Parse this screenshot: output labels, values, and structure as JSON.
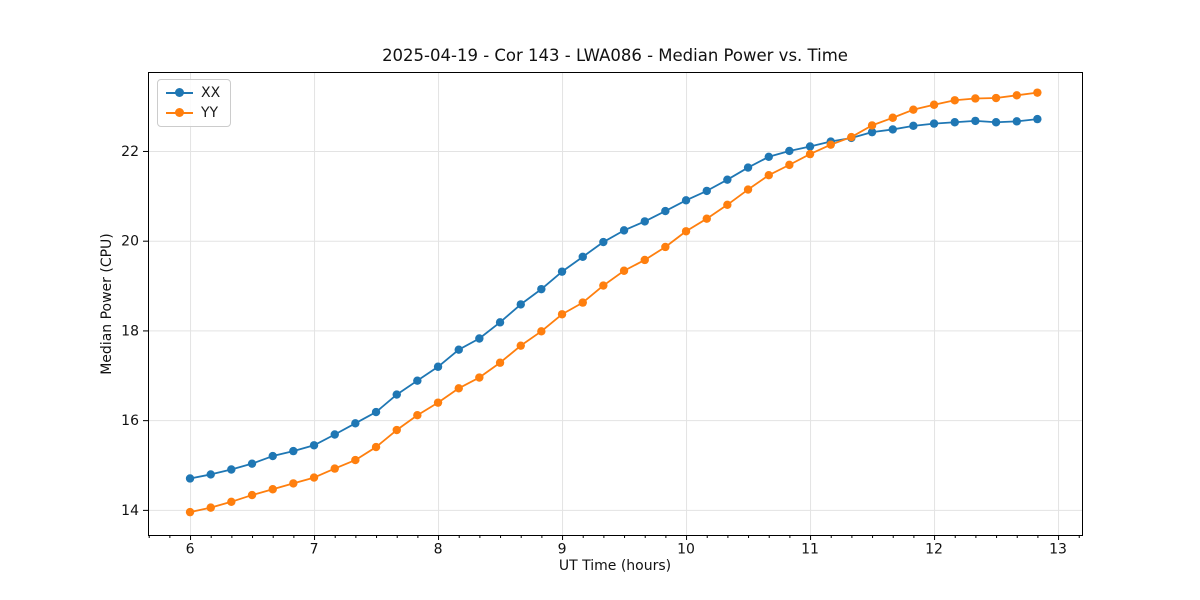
{
  "chart_data": {
    "type": "line",
    "title": "2025-04-19 - Cor 143 - LWA086 - Median Power vs. Time",
    "xlabel": "UT Time (hours)",
    "ylabel": "Median Power (CPU)",
    "grid": true,
    "legend_position": "upper-left",
    "xlim": [
      5.661,
      13.193
    ],
    "ylim": [
      13.44,
      23.76
    ],
    "x_major_ticks": [
      6,
      7,
      8,
      9,
      10,
      11,
      12,
      13
    ],
    "x_minor_tick_step": 0.1667,
    "y_major_ticks": [
      14,
      16,
      18,
      20,
      22
    ],
    "x": [
      6,
      6.167,
      6.333,
      6.5,
      6.667,
      6.833,
      7,
      7.167,
      7.333,
      7.5,
      7.667,
      7.833,
      8,
      8.167,
      8.333,
      8.5,
      8.667,
      8.833,
      9,
      9.167,
      9.333,
      9.5,
      9.667,
      9.833,
      10,
      10.167,
      10.333,
      10.5,
      10.667,
      10.833,
      11,
      11.167,
      11.333,
      11.5,
      11.667,
      11.833,
      12,
      12.167,
      12.333,
      12.5,
      12.667,
      12.833
    ],
    "series": [
      {
        "name": "XX",
        "color": "#1f77b4",
        "values": [
          14.7,
          14.79,
          14.9,
          15.03,
          15.2,
          15.31,
          15.44,
          15.68,
          15.93,
          16.18,
          16.57,
          16.88,
          17.19,
          17.57,
          17.82,
          18.18,
          18.58,
          18.92,
          19.31,
          19.64,
          19.97,
          20.23,
          20.43,
          20.66,
          20.9,
          21.11,
          21.36,
          21.63,
          21.87,
          22.0,
          22.1,
          22.21,
          22.29,
          22.42,
          22.48,
          22.56,
          22.61,
          22.64,
          22.67,
          22.64,
          22.66,
          22.71
        ]
      },
      {
        "name": "YY",
        "color": "#ff7f0e",
        "values": [
          13.95,
          14.05,
          14.18,
          14.33,
          14.46,
          14.59,
          14.72,
          14.92,
          15.11,
          15.4,
          15.78,
          16.11,
          16.39,
          16.71,
          16.95,
          17.28,
          17.66,
          17.98,
          18.36,
          18.62,
          19.0,
          19.33,
          19.57,
          19.86,
          20.21,
          20.49,
          20.8,
          21.14,
          21.46,
          21.69,
          21.93,
          22.14,
          22.31,
          22.57,
          22.74,
          22.92,
          23.03,
          23.13,
          23.17,
          23.18,
          23.24,
          23.3
        ]
      }
    ]
  },
  "colors": {
    "series_xx": "#1f77b4",
    "series_yy": "#ff7f0e",
    "grid": "#e3e3e3",
    "spine": "#000000",
    "text": "#111111"
  }
}
